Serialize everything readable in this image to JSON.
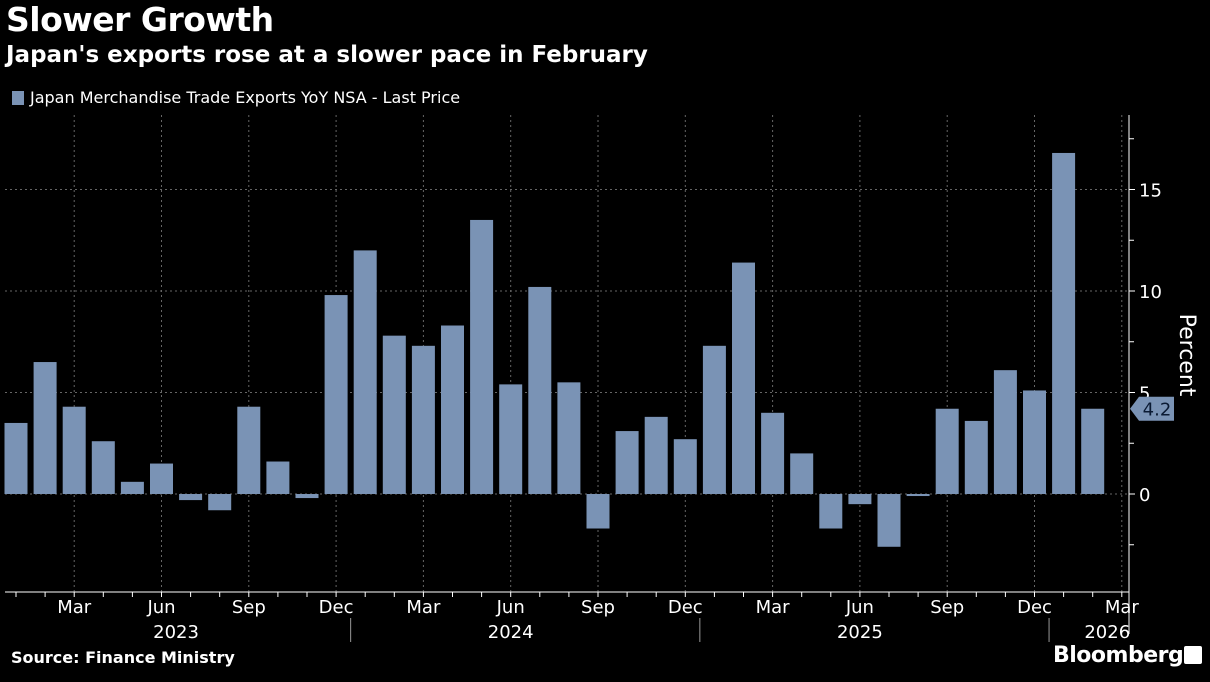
{
  "title": "Slower Growth",
  "subtitle": "Japan's exports rose at a slower pace in February",
  "source": "Source: Finance Ministry",
  "brand": "Bloomberg",
  "colors": {
    "bar": "#7a93b5",
    "background": "#000000"
  },
  "chart_data": {
    "type": "bar",
    "title": "Slower Growth",
    "subtitle": "Japan's exports rose at a slower pace in February",
    "legend": [
      "Japan Merchandise Trade Exports YoY NSA - Last Price"
    ],
    "legend_position": "top-left",
    "ylabel": "Percent",
    "ylim": [
      -4.5,
      18.5
    ],
    "yticks": [
      0,
      5,
      10,
      15
    ],
    "grid": true,
    "categories": [
      "Jan 2023",
      "Feb 2023",
      "Mar 2023",
      "Apr 2023",
      "May 2023",
      "Jun 2023",
      "Jul 2023",
      "Aug 2023",
      "Sep 2023",
      "Oct 2023",
      "Nov 2023",
      "Dec 2023",
      "Jan 2024",
      "Feb 2024",
      "Mar 2024",
      "Apr 2024",
      "May 2024",
      "Jun 2024",
      "Jul 2024",
      "Aug 2024",
      "Sep 2024",
      "Oct 2024",
      "Nov 2024",
      "Dec 2024",
      "Jan 2025",
      "Feb 2025",
      "Mar 2025",
      "Apr 2025",
      "May 2025",
      "Jun 2025",
      "Jul 2025",
      "Aug 2025",
      "Sep 2025",
      "Oct 2025",
      "Nov 2025",
      "Dec 2025",
      "Jan 2026",
      "Feb 2026"
    ],
    "values": [
      3.5,
      6.5,
      4.3,
      2.6,
      0.6,
      1.5,
      -0.3,
      -0.8,
      4.3,
      1.6,
      -0.2,
      9.8,
      12.0,
      7.8,
      7.3,
      8.3,
      13.5,
      5.4,
      10.2,
      5.5,
      -1.7,
      3.1,
      3.8,
      2.7,
      7.3,
      11.4,
      4.0,
      2.0,
      -1.7,
      -0.5,
      -2.6,
      -0.1,
      4.2,
      3.6,
      6.1,
      5.1,
      16.8,
      4.2
    ],
    "x_month_labels": [
      {
        "label": "Mar",
        "index": 2
      },
      {
        "label": "Jun",
        "index": 5
      },
      {
        "label": "Sep",
        "index": 8
      },
      {
        "label": "Dec",
        "index": 11
      },
      {
        "label": "Mar",
        "index": 14
      },
      {
        "label": "Jun",
        "index": 17
      },
      {
        "label": "Sep",
        "index": 20
      },
      {
        "label": "Dec",
        "index": 23
      },
      {
        "label": "Mar",
        "index": 26
      },
      {
        "label": "Jun",
        "index": 29
      },
      {
        "label": "Sep",
        "index": 32
      },
      {
        "label": "Dec",
        "index": 35
      },
      {
        "label": "Mar",
        "index": 38
      }
    ],
    "x_year_labels": [
      {
        "label": "2023",
        "index": 5.5
      },
      {
        "label": "2024",
        "index": 17
      },
      {
        "label": "2025",
        "index": 29
      },
      {
        "label": "2026",
        "index": 37.5
      }
    ],
    "last_value_label": "4.2"
  }
}
